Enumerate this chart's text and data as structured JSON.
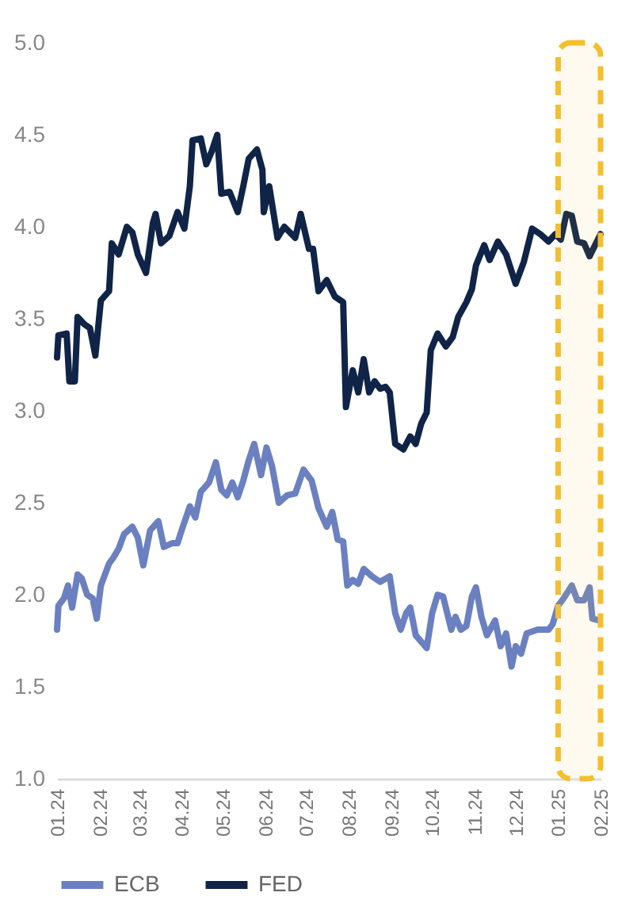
{
  "chart_data": {
    "type": "line",
    "legend": "bottom",
    "grid": false,
    "marker": "none",
    "line_style": "solid",
    "xlim": [
      "2024-01-01",
      "2025-02-01"
    ],
    "xticks": [
      {
        "value": "2024-01",
        "label": "01.24"
      },
      {
        "value": "2024-02",
        "label": "02.24"
      },
      {
        "value": "2024-03",
        "label": "03.24"
      },
      {
        "value": "2024-04",
        "label": "04.24"
      },
      {
        "value": "2024-05",
        "label": "05.24"
      },
      {
        "value": "2024-06",
        "label": "06.24"
      },
      {
        "value": "2024-07",
        "label": "07.24"
      },
      {
        "value": "2024-08",
        "label": "08.24"
      },
      {
        "value": "2024-09",
        "label": "09.24"
      },
      {
        "value": "2024-10",
        "label": "10.24"
      },
      {
        "value": "2024-11",
        "label": "11.24"
      },
      {
        "value": "2024-12",
        "label": "12.24"
      },
      {
        "value": "2025-01",
        "label": "01.25"
      },
      {
        "value": "2025-02",
        "label": "02.25"
      }
    ],
    "ylim": [
      1,
      5
    ],
    "yticks": [
      {
        "value": 1,
        "label": "1.0"
      },
      {
        "value": 1.5,
        "label": "1.5"
      },
      {
        "value": 2,
        "label": "2.0"
      },
      {
        "value": 2.5,
        "label": "2.5"
      },
      {
        "value": 3,
        "label": "3.0"
      },
      {
        "value": 3.5,
        "label": "3.5"
      },
      {
        "value": 4,
        "label": "4.0"
      },
      {
        "value": 4.5,
        "label": "4.5"
      },
      {
        "value": 5,
        "label": "5.0"
      }
    ],
    "bands": [
      {
        "axis": "x",
        "from": "2025-01-01",
        "to": "2025-02-01",
        "color": "#f5be2e"
      }
    ],
    "series": [
      {
        "name": "ECB",
        "color": "#6b80c0",
        "x": [
          "2024-01-01",
          "2024-01-02",
          "2024-01-06",
          "2024-01-09",
          "2024-01-12",
          "2024-01-16",
          "2024-01-19",
          "2024-01-23",
          "2024-01-27",
          "2024-01-30",
          "2024-02-02",
          "2024-02-08",
          "2024-02-11",
          "2024-02-15",
          "2024-02-19",
          "2024-02-25",
          "2024-02-29",
          "2024-03-04",
          "2024-03-09",
          "2024-03-15",
          "2024-03-19",
          "2024-03-25",
          "2024-03-29",
          "2024-04-01",
          "2024-04-07",
          "2024-04-11",
          "2024-04-15",
          "2024-04-21",
          "2024-04-26",
          "2024-04-30",
          "2024-05-04",
          "2024-05-08",
          "2024-05-12",
          "2024-05-16",
          "2024-05-20",
          "2024-05-24",
          "2024-05-29",
          "2024-06-02",
          "2024-06-06",
          "2024-06-11",
          "2024-06-17",
          "2024-06-23",
          "2024-06-29",
          "2024-07-05",
          "2024-07-10",
          "2024-07-16",
          "2024-07-20",
          "2024-07-24",
          "2024-07-28",
          "2024-07-31",
          "2024-08-04",
          "2024-08-08",
          "2024-08-12",
          "2024-08-18",
          "2024-08-24",
          "2024-08-31",
          "2024-09-04",
          "2024-09-08",
          "2024-09-12",
          "2024-09-15",
          "2024-09-19",
          "2024-09-27",
          "2024-10-01",
          "2024-10-05",
          "2024-10-09",
          "2024-10-15",
          "2024-10-18",
          "2024-10-22",
          "2024-10-26",
          "2024-10-30",
          "2024-11-02",
          "2024-11-06",
          "2024-11-10",
          "2024-11-16",
          "2024-11-20",
          "2024-11-24",
          "2024-11-28",
          "2024-12-01",
          "2024-12-05",
          "2024-12-09",
          "2024-12-17",
          "2024-12-25",
          "2024-12-28",
          "2025-01-01",
          "2025-01-05",
          "2025-01-11",
          "2025-01-15",
          "2025-01-20",
          "2025-01-24",
          "2025-01-26",
          "2025-01-31"
        ],
        "values": [
          1.81,
          1.94,
          1.98,
          2.05,
          1.93,
          2.11,
          2.09,
          2.0,
          1.98,
          1.87,
          2.05,
          2.17,
          2.2,
          2.25,
          2.33,
          2.37,
          2.31,
          2.16,
          2.35,
          2.4,
          2.26,
          2.28,
          2.28,
          2.35,
          2.48,
          2.42,
          2.56,
          2.61,
          2.72,
          2.57,
          2.54,
          2.61,
          2.53,
          2.62,
          2.73,
          2.82,
          2.65,
          2.8,
          2.7,
          2.5,
          2.54,
          2.55,
          2.68,
          2.62,
          2.47,
          2.37,
          2.45,
          2.3,
          2.29,
          2.05,
          2.08,
          2.06,
          2.14,
          2.1,
          2.07,
          2.1,
          1.9,
          1.81,
          1.9,
          1.93,
          1.78,
          1.71,
          1.9,
          2.0,
          1.99,
          1.81,
          1.88,
          1.81,
          1.83,
          1.99,
          2.04,
          1.88,
          1.78,
          1.86,
          1.72,
          1.79,
          1.61,
          1.72,
          1.68,
          1.79,
          1.81,
          1.81,
          1.84,
          1.94,
          1.98,
          2.05,
          1.97,
          1.97,
          2.04,
          1.87,
          1.86
        ]
      },
      {
        "name": "FED",
        "color": "#0f2447",
        "x": [
          "2024-01-01",
          "2024-01-02",
          "2024-01-08",
          "2024-01-10",
          "2024-01-14",
          "2024-01-16",
          "2024-01-21",
          "2024-01-25",
          "2024-01-29",
          "2024-02-02",
          "2024-02-08",
          "2024-02-10",
          "2024-02-15",
          "2024-02-21",
          "2024-02-25",
          "2024-02-29",
          "2024-03-06",
          "2024-03-11",
          "2024-03-13",
          "2024-03-17",
          "2024-03-23",
          "2024-03-29",
          "2024-04-03",
          "2024-04-07",
          "2024-04-09",
          "2024-04-15",
          "2024-04-19",
          "2024-04-23",
          "2024-04-27",
          "2024-04-30",
          "2024-05-06",
          "2024-05-12",
          "2024-05-16",
          "2024-05-20",
          "2024-05-26",
          "2024-05-30",
          "2024-05-31",
          "2024-06-04",
          "2024-06-10",
          "2024-06-15",
          "2024-06-23",
          "2024-06-27",
          "2024-07-03",
          "2024-07-06",
          "2024-07-10",
          "2024-07-16",
          "2024-07-22",
          "2024-07-28",
          "2024-07-30",
          "2024-08-04",
          "2024-08-08",
          "2024-08-12",
          "2024-08-16",
          "2024-08-20",
          "2024-08-24",
          "2024-08-28",
          "2024-08-31",
          "2024-09-04",
          "2024-09-10",
          "2024-09-15",
          "2024-09-19",
          "2024-09-23",
          "2024-09-27",
          "2024-09-30",
          "2024-10-05",
          "2024-10-11",
          "2024-10-16",
          "2024-10-20",
          "2024-10-26",
          "2024-10-30",
          "2024-11-02",
          "2024-11-08",
          "2024-11-12",
          "2024-11-18",
          "2024-11-24",
          "2024-12-01",
          "2024-12-07",
          "2024-12-13",
          "2024-12-19",
          "2024-12-25",
          "2024-12-30",
          "2025-01-03",
          "2025-01-07",
          "2025-01-11",
          "2025-01-15",
          "2025-01-20",
          "2025-01-24",
          "2025-02-01"
        ],
        "values": [
          3.29,
          3.41,
          3.42,
          3.16,
          3.16,
          3.51,
          3.47,
          3.45,
          3.3,
          3.6,
          3.65,
          3.91,
          3.85,
          4.0,
          3.97,
          3.85,
          3.75,
          4.02,
          4.07,
          3.91,
          3.95,
          4.08,
          3.99,
          4.22,
          4.47,
          4.48,
          4.34,
          4.41,
          4.5,
          4.18,
          4.19,
          4.08,
          4.22,
          4.37,
          4.42,
          4.31,
          4.08,
          4.22,
          3.94,
          4.0,
          3.94,
          4.07,
          3.88,
          3.88,
          3.65,
          3.71,
          3.62,
          3.59,
          3.02,
          3.22,
          3.1,
          3.28,
          3.1,
          3.16,
          3.12,
          3.13,
          3.1,
          2.82,
          2.79,
          2.86,
          2.82,
          2.93,
          2.99,
          3.33,
          3.42,
          3.35,
          3.4,
          3.51,
          3.59,
          3.66,
          3.79,
          3.9,
          3.82,
          3.92,
          3.85,
          3.69,
          3.81,
          3.99,
          3.96,
          3.92,
          3.96,
          3.93,
          4.07,
          4.06,
          3.92,
          3.91,
          3.84,
          3.96
        ]
      }
    ]
  }
}
